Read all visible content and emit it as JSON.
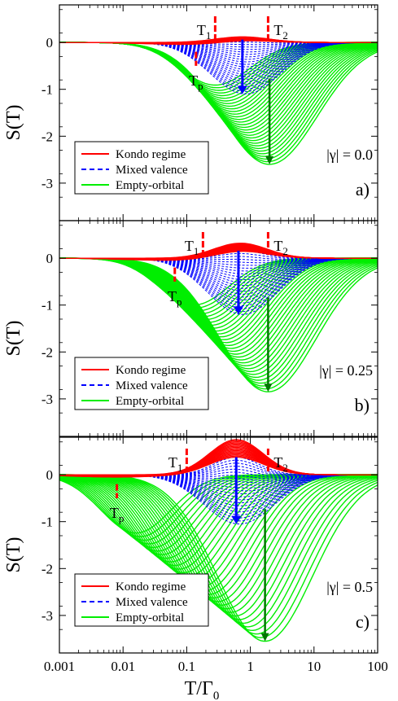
{
  "chart_data": [
    {
      "type": "line",
      "panel_label": "a)",
      "gamma_label": "|γ| = 0.0",
      "gamma": 0.0,
      "xlabel": "T/Γ",
      "xlabel_sub": "0",
      "ylabel": "S(T)",
      "xscale": "log",
      "xlim": [
        0.001,
        100
      ],
      "ylim": [
        -3.8,
        0.8
      ],
      "xticks": [
        "0.001",
        "0.01",
        "0.1",
        "1",
        "10",
        "100"
      ],
      "yticks": [
        "0",
        "-1",
        "-2",
        "-3"
      ],
      "legend_position": "bottom-left",
      "legend": [
        {
          "label": "Kondo regime",
          "color": "#ff0000",
          "style": "solid"
        },
        {
          "label": "Mixed valence",
          "color": "#0000ff",
          "style": "dashed"
        },
        {
          "label": "Empty-orbital",
          "color": "#00ee00",
          "style": "solid"
        }
      ],
      "markers": [
        {
          "label": "T",
          "sub": "1",
          "x": 0.28,
          "y": 0.85
        },
        {
          "label": "T",
          "sub": "2",
          "x": 1.9,
          "y": 0.85
        },
        {
          "label": "T",
          "sub": "p",
          "x": 0.14,
          "y": -0.45
        }
      ],
      "kondo_peak": {
        "x": 0.75,
        "y": 0.12
      },
      "mixed_min": {
        "x": 0.75,
        "y": -1.1
      },
      "empty_min": {
        "x": 2.0,
        "y": -2.6
      }
    },
    {
      "type": "line",
      "panel_label": "b)",
      "gamma_label": "|γ| = 0.25",
      "gamma": 0.25,
      "xlabel": "T/Γ",
      "xlabel_sub": "0",
      "ylabel": "S(T)",
      "xscale": "log",
      "xlim": [
        0.001,
        100
      ],
      "ylim": [
        -3.8,
        0.8
      ],
      "xticks": [
        "0.001",
        "0.01",
        "0.1",
        "1",
        "10",
        "100"
      ],
      "yticks": [
        "0",
        "-1",
        "-2",
        "-3"
      ],
      "legend_position": "bottom-left",
      "legend": [
        {
          "label": "Kondo regime",
          "color": "#ff0000",
          "style": "solid"
        },
        {
          "label": "Mixed valence",
          "color": "#0000ff",
          "style": "dashed"
        },
        {
          "label": "Empty-orbital",
          "color": "#00ee00",
          "style": "solid"
        }
      ],
      "markers": [
        {
          "label": "T",
          "sub": "1",
          "x": 0.18,
          "y": 0.85
        },
        {
          "label": "T",
          "sub": "2",
          "x": 1.9,
          "y": 0.85
        },
        {
          "label": "T",
          "sub": "p",
          "x": 0.065,
          "y": -0.45
        }
      ],
      "kondo_peak": {
        "x": 0.7,
        "y": 0.32
      },
      "mixed_min": {
        "x": 0.65,
        "y": -1.2
      },
      "empty_min": {
        "x": 1.9,
        "y": -2.85
      }
    },
    {
      "type": "line",
      "panel_label": "c)",
      "gamma_label": "|γ| = 0.5",
      "gamma": 0.5,
      "xlabel": "T/Γ",
      "xlabel_sub": "0",
      "ylabel": "S(T)",
      "xscale": "log",
      "xlim": [
        0.001,
        100
      ],
      "ylim": [
        -3.8,
        0.8
      ],
      "xticks": [
        "0.001",
        "0.01",
        "0.1",
        "1",
        "10",
        "100"
      ],
      "yticks": [
        "0",
        "-1",
        "-2",
        "-3"
      ],
      "legend_position": "bottom-left",
      "legend": [
        {
          "label": "Kondo regime",
          "color": "#ff0000",
          "style": "solid"
        },
        {
          "label": "Mixed valence",
          "color": "#0000ff",
          "style": "dashed"
        },
        {
          "label": "Empty-orbital",
          "color": "#00ee00",
          "style": "solid"
        }
      ],
      "markers": [
        {
          "label": "T",
          "sub": "1",
          "x": 0.1,
          "y": 0.85
        },
        {
          "label": "T",
          "sub": "2",
          "x": 1.9,
          "y": 0.85
        },
        {
          "label": "T",
          "sub": "p",
          "x": 0.008,
          "y": -0.45
        }
      ],
      "kondo_peak": {
        "x": 0.6,
        "y": 0.75
      },
      "mixed_min": {
        "x": 0.6,
        "y": -1.05
      },
      "empty_min": {
        "x": 1.7,
        "y": -3.55
      }
    }
  ]
}
